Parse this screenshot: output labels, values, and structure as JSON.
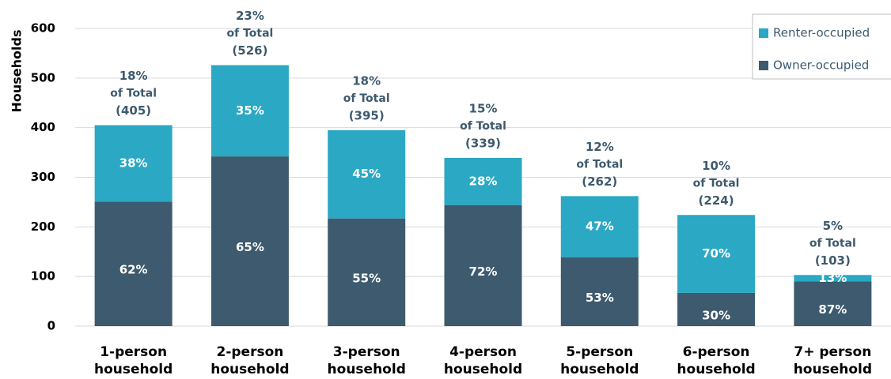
{
  "chart_data": {
    "type": "stacked_bar",
    "y_axis_label": "Households",
    "categories": [
      "1-person\nhousehold",
      "2-person\nhousehold",
      "3-person\nhousehold",
      "4-person\nhousehold",
      "5-person\nhousehold",
      "6-person\nhousehold",
      "7+ person\nhousehold"
    ],
    "series": [
      {
        "name": "Owner-occupied",
        "color": "#3d5a6e",
        "values": [
          251,
          342,
          217,
          244,
          139,
          67,
          90
        ],
        "segment_labels": [
          "62%",
          "65%",
          "55%",
          "72%",
          "53%",
          "30%",
          "87%"
        ]
      },
      {
        "name": "Renter-occupied",
        "color": "#2aa8c4",
        "values": [
          154,
          184,
          178,
          95,
          123,
          157,
          13
        ],
        "segment_labels": [
          "38%",
          "35%",
          "45%",
          "28%",
          "47%",
          "70%",
          "13%"
        ]
      }
    ],
    "total_annotations": [
      [
        "18%",
        "of Total",
        "(405)"
      ],
      [
        "23%",
        "of Total",
        "(526)"
      ],
      [
        "18%",
        "of Total",
        "(395)"
      ],
      [
        "15%",
        "of Total",
        "(339)"
      ],
      [
        "12%",
        "of Total",
        "(262)"
      ],
      [
        "10%",
        "of Total",
        "(224)"
      ],
      [
        "5%",
        "of Total",
        "(103)"
      ]
    ],
    "ylim": [
      0,
      600
    ],
    "yticks": [
      0,
      100,
      200,
      300,
      400,
      500,
      600
    ],
    "grid": true,
    "legend_position": "top-right"
  }
}
